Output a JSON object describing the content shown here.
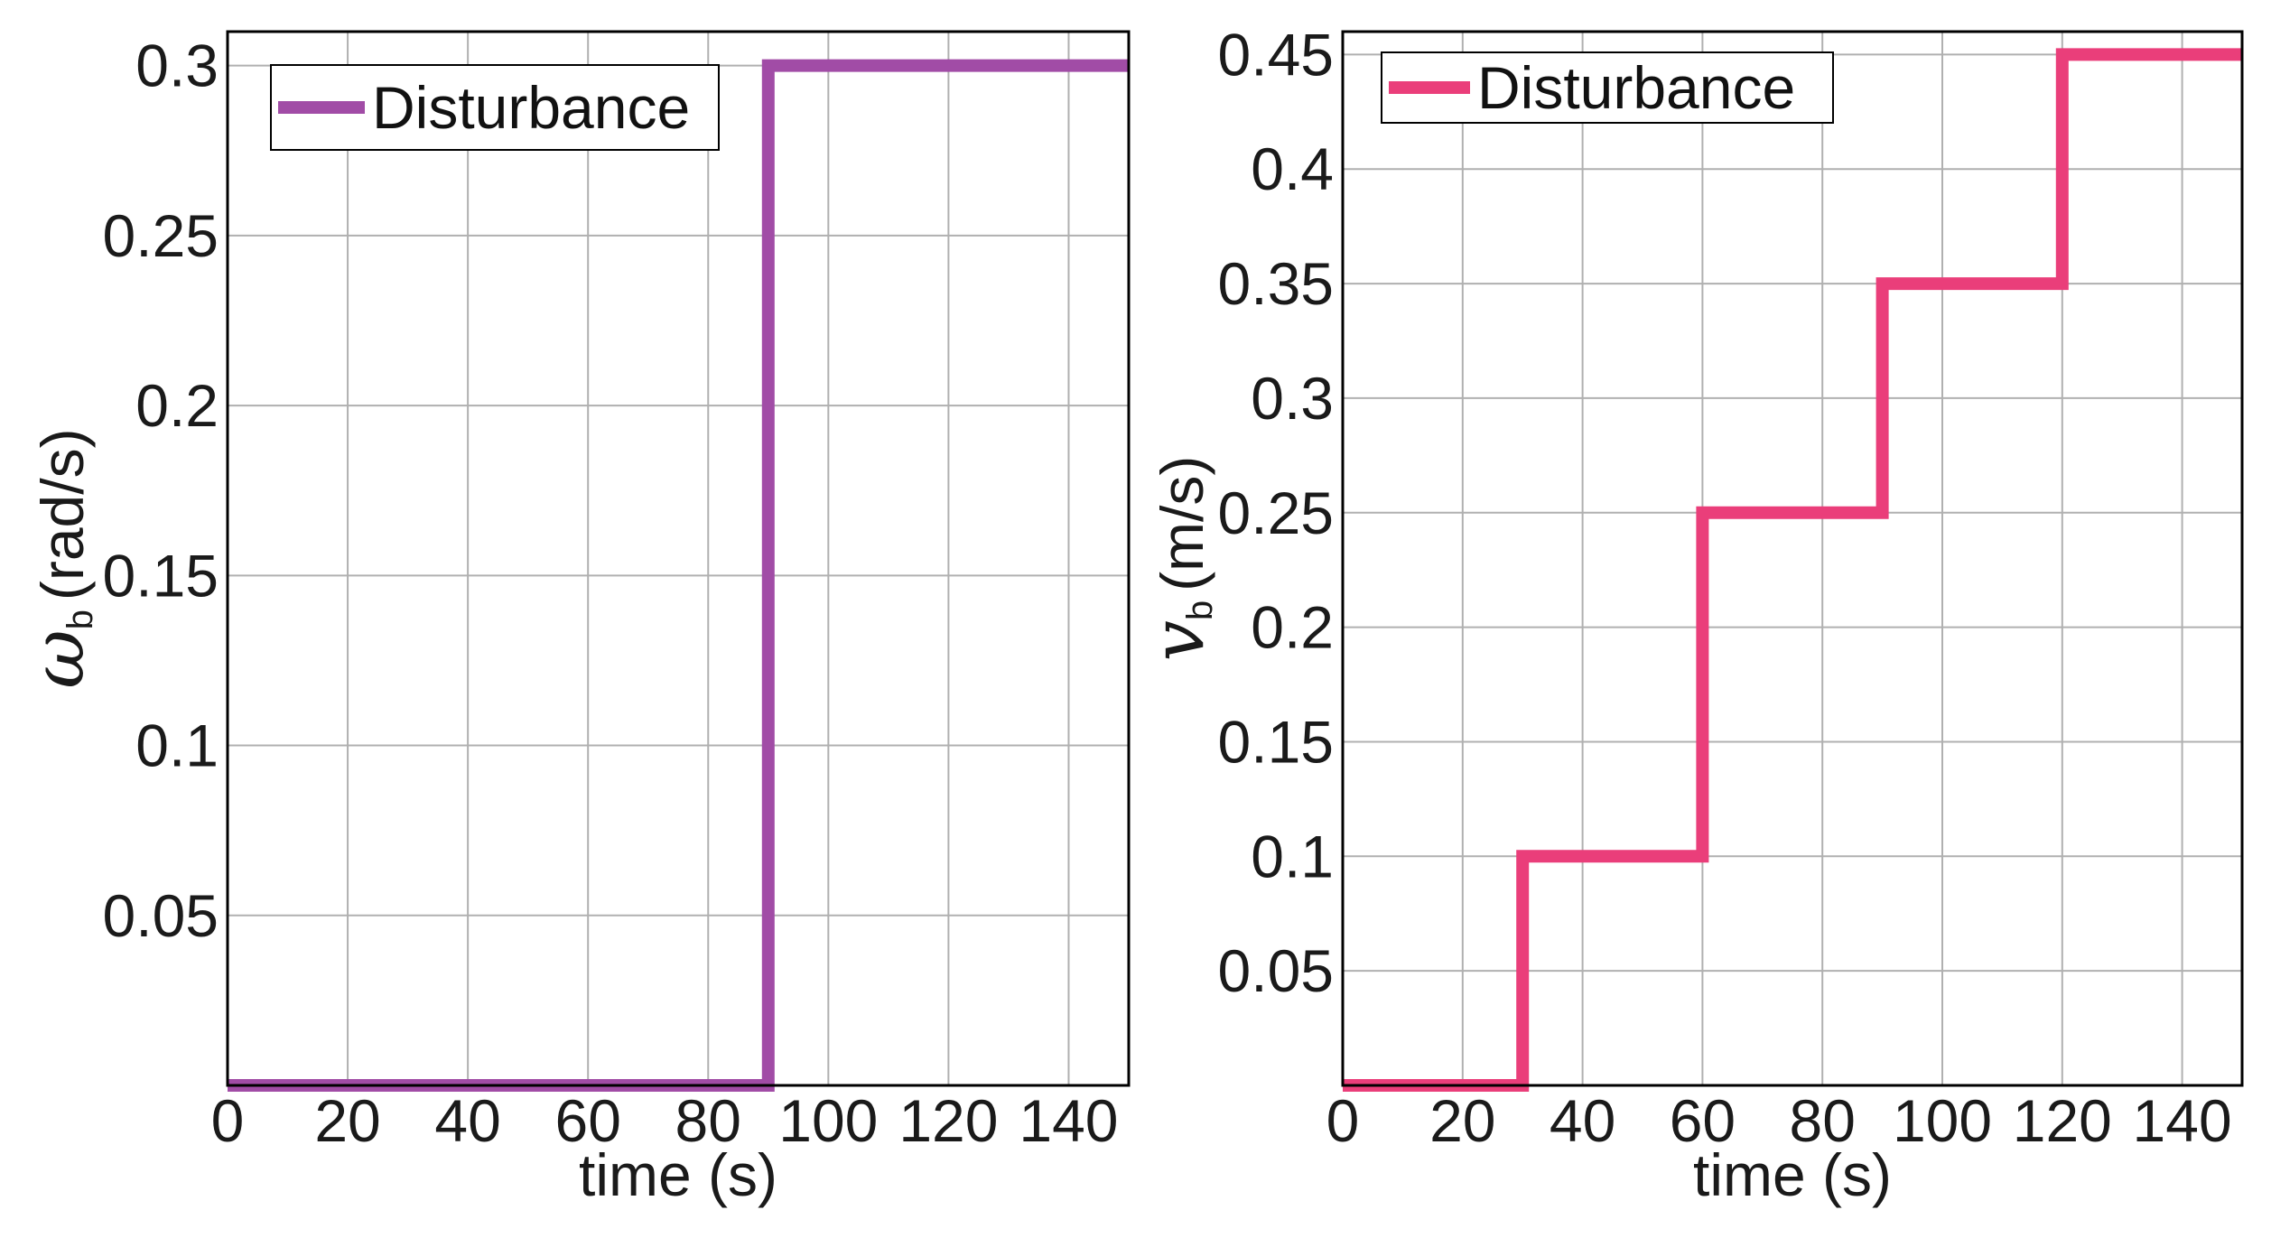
{
  "chart_data": [
    {
      "type": "line",
      "title": "",
      "xlabel": "time (s)",
      "ylabel": {
        "symbol": "ω",
        "subscript": "b",
        "unit": "(rad/s)"
      },
      "xlim": [
        0,
        150
      ],
      "ylim": [
        0,
        0.31
      ],
      "xticks": [
        0,
        20,
        40,
        60,
        80,
        100,
        120,
        140
      ],
      "yticks": [
        0.05,
        0.1,
        0.15,
        0.2,
        0.25,
        0.3
      ],
      "xtick_labels": [
        "0",
        "20",
        "40",
        "60",
        "80",
        "100",
        "120",
        "140"
      ],
      "ytick_labels": [
        "0.05",
        "0.1",
        "0.15",
        "0.2",
        "0.25",
        "0.3"
      ],
      "grid": true,
      "legend": "top-left",
      "series": [
        {
          "name": "Disturbance",
          "color": "#A14CA6",
          "x": [
            0,
            90,
            90,
            150
          ],
          "y": [
            0,
            0,
            0.3,
            0.3
          ]
        }
      ]
    },
    {
      "type": "line",
      "title": "",
      "xlabel": "time (s)",
      "ylabel": {
        "symbol": "v",
        "subscript": "b",
        "unit": "(m/s)"
      },
      "xlim": [
        0,
        150
      ],
      "ylim": [
        0,
        0.46
      ],
      "xticks": [
        0,
        20,
        40,
        60,
        80,
        100,
        120,
        140
      ],
      "yticks": [
        0.05,
        0.1,
        0.15,
        0.2,
        0.25,
        0.3,
        0.35,
        0.4,
        0.45
      ],
      "xtick_labels": [
        "0",
        "20",
        "40",
        "60",
        "80",
        "100",
        "120",
        "140"
      ],
      "ytick_labels": [
        "0.05",
        "0.1",
        "0.15",
        "0.2",
        "0.25",
        "0.3",
        "0.35",
        "0.4",
        "0.45"
      ],
      "grid": true,
      "legend": "top-left",
      "series": [
        {
          "name": "Disturbance",
          "color": "#EA3E7A",
          "x": [
            0,
            30,
            30,
            60,
            60,
            90,
            90,
            120,
            120,
            150
          ],
          "y": [
            0,
            0,
            0.1,
            0.1,
            0.25,
            0.25,
            0.35,
            0.35,
            0.45,
            0.45
          ]
        }
      ]
    }
  ]
}
